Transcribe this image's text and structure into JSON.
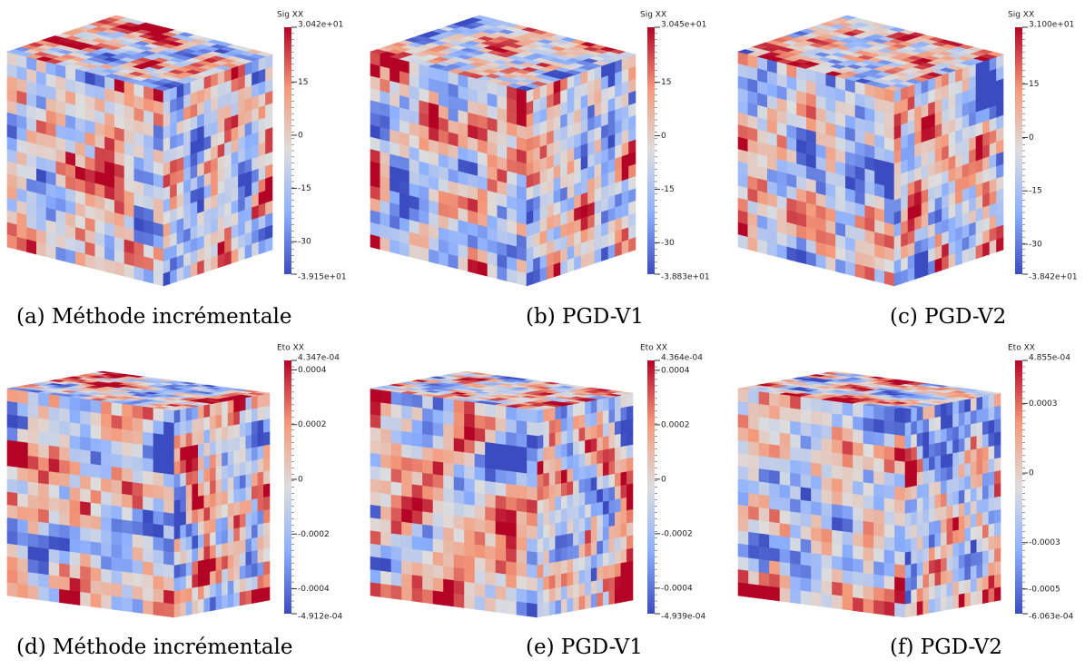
{
  "panels": [
    {
      "caption": "(a) Méthode incrémentale",
      "colorbar": {
        "title": "Sig XX",
        "max": {
          "value": 30.42,
          "label": "3.042e+01"
        },
        "min": {
          "value": -39.15,
          "label": "-3.915e+01"
        },
        "ticks": [
          15,
          0,
          -15,
          -30
        ]
      }
    },
    {
      "caption": "(b) PGD-V1",
      "colorbar": {
        "title": "Sig XX",
        "max": {
          "value": 30.45,
          "label": "3.045e+01"
        },
        "min": {
          "value": -38.83,
          "label": "-3.883e+01"
        },
        "ticks": [
          15,
          0,
          -15,
          -30
        ]
      }
    },
    {
      "caption": "(c) PGD-V2",
      "colorbar": {
        "title": "Sig XX",
        "max": {
          "value": 31.0,
          "label": "3.100e+01"
        },
        "min": {
          "value": -38.42,
          "label": "-3.842e+01"
        },
        "ticks": [
          15,
          0,
          -15,
          -30
        ]
      }
    },
    {
      "caption": "(d) Méthode incrémentale",
      "colorbar": {
        "title": "Eto XX",
        "max": {
          "value": 0.0004347,
          "label": "4.347e-04"
        },
        "min": {
          "value": -0.0004912,
          "label": "-4.912e-04"
        },
        "ticks": [
          0.0004,
          0.0002,
          0,
          -0.0002,
          -0.0004
        ]
      }
    },
    {
      "caption": "(e) PGD-V1",
      "colorbar": {
        "title": "Eto XX",
        "max": {
          "value": 0.0004364,
          "label": "4.364e-04"
        },
        "min": {
          "value": -0.0004939,
          "label": "-4.939e-04"
        },
        "ticks": [
          0.0004,
          0.0002,
          0,
          -0.0002,
          -0.0004
        ]
      }
    },
    {
      "caption": "(f) PGD-V2",
      "colorbar": {
        "title": "Eto XX",
        "max": {
          "value": 0.0004855,
          "label": "4.855e-04"
        },
        "min": {
          "value": -0.0006063,
          "label": "-6.063e-04"
        },
        "ticks": [
          0.0003,
          0,
          -0.0003,
          -0.0005
        ]
      }
    }
  ]
}
